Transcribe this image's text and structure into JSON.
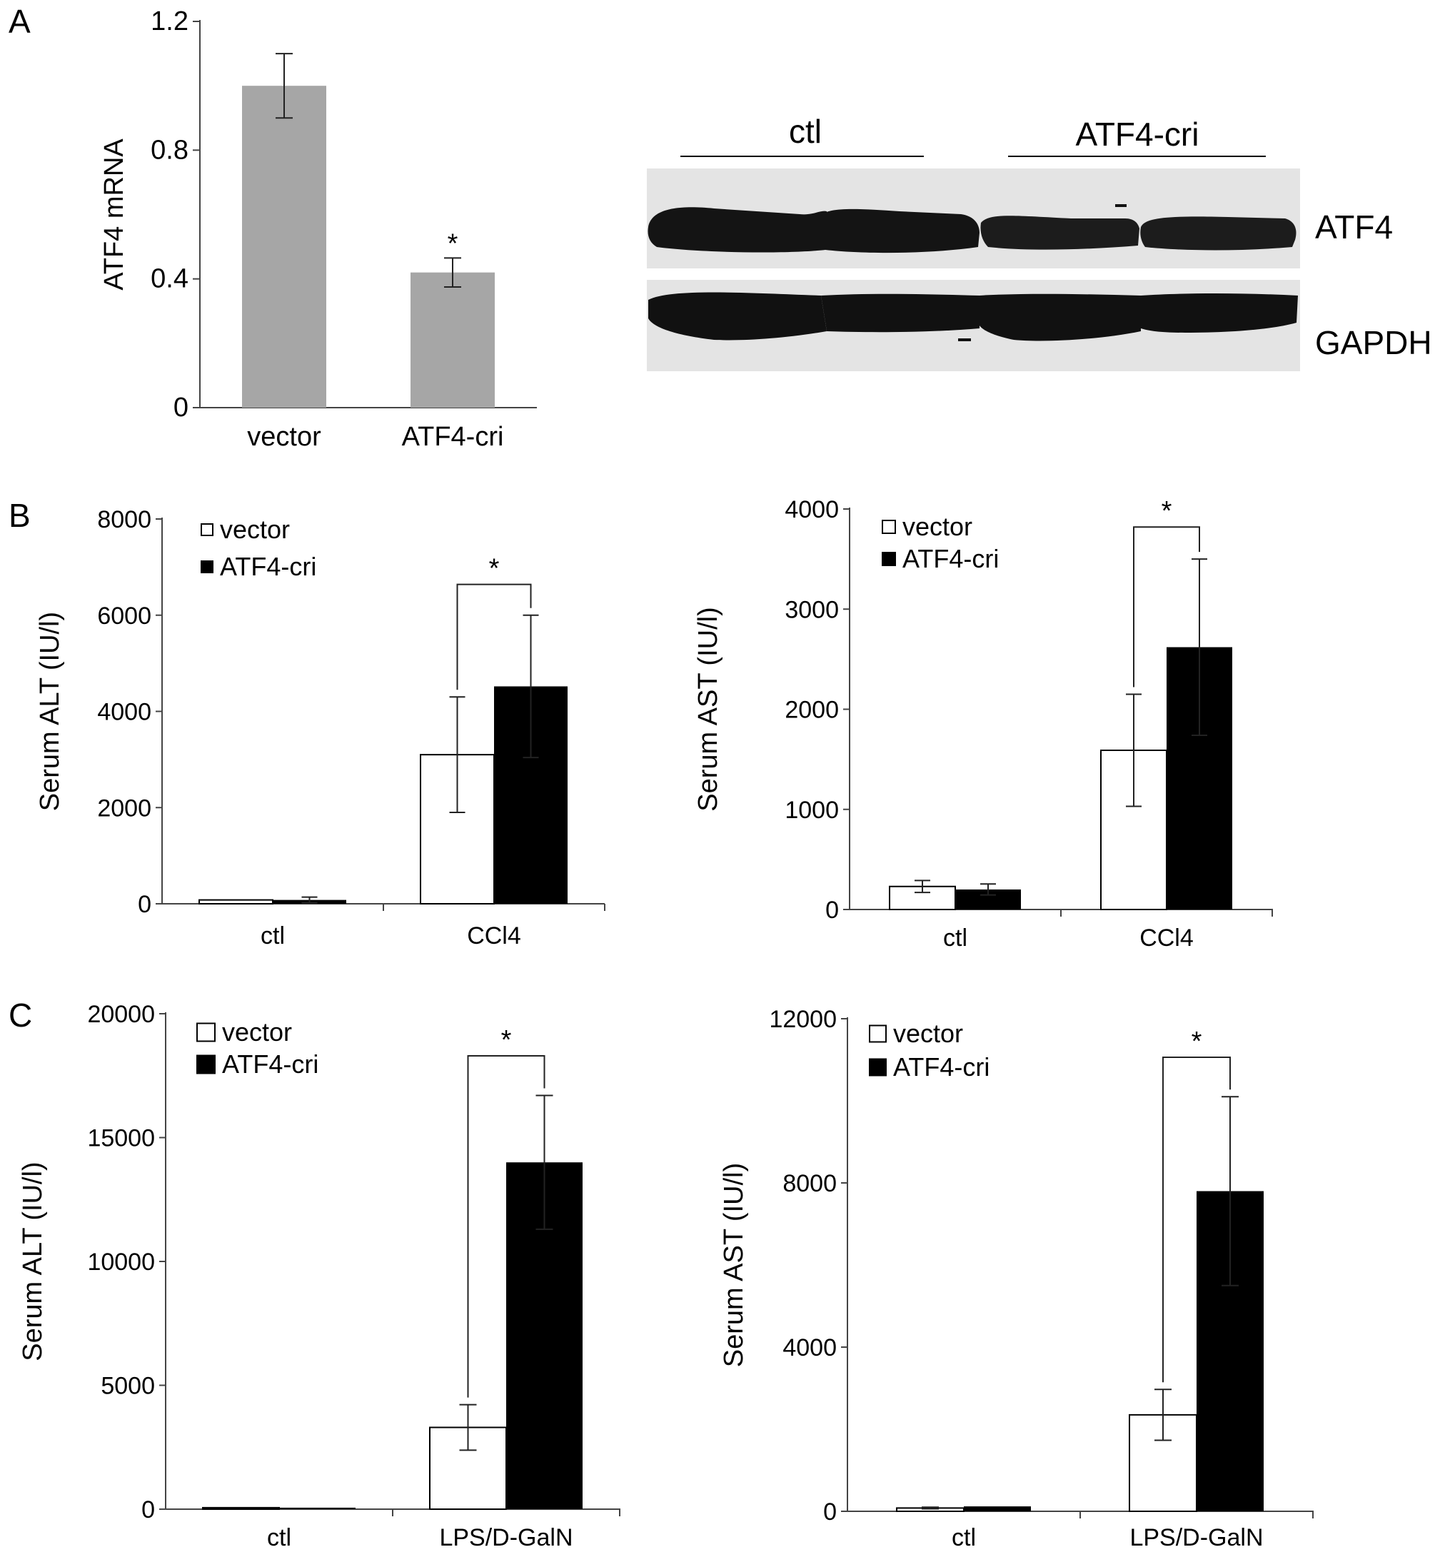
{
  "panel_letters": [
    "A",
    "B",
    "C"
  ],
  "western_blot": {
    "group_labels": [
      "ctl",
      "ATF4-cri"
    ],
    "band_labels": [
      "ATF4",
      "GAPDH"
    ]
  },
  "chart_data": [
    {
      "id": "a",
      "type": "bar",
      "panel": "A",
      "categories": [
        "vector",
        "ATF4-cri"
      ],
      "series": [
        {
          "values": [
            1.0,
            0.42
          ],
          "errors": [
            0.1,
            0.045
          ],
          "color": "#a6a6a6"
        }
      ],
      "ylabel": "ATF4 mRNA",
      "ylim": [
        0,
        1.2
      ],
      "yticks": [
        0,
        0.4,
        0.8,
        1.2
      ],
      "ytick_labels": [
        "0",
        "0.4",
        "0.8",
        "1.2"
      ],
      "annotations": [
        {
          "text": "*",
          "category": "ATF4-cri"
        }
      ],
      "grid": false
    },
    {
      "id": "b1",
      "type": "bar",
      "panel": "B",
      "categories": [
        "ctl",
        "CCl4"
      ],
      "series": [
        {
          "name": "vector",
          "values": [
            80,
            3100
          ],
          "errors": [
            0,
            1200
          ],
          "color": "#ffffff"
        },
        {
          "name": "ATF4-cri",
          "values": [
            80,
            4520
          ],
          "errors": [
            60,
            1480
          ],
          "color": "#000000"
        }
      ],
      "ylabel": "Serum ALT (IU/l)",
      "ylim": [
        0,
        8000
      ],
      "yticks": [
        0,
        2000,
        4000,
        6000,
        8000
      ],
      "legend": {
        "position": "top-left",
        "entries": [
          "vector",
          "ATF4-cri"
        ]
      },
      "annotations": [
        {
          "text": "*",
          "category": "CCl4",
          "type": "significance-bracket"
        }
      ],
      "grid": false
    },
    {
      "id": "b2",
      "type": "bar",
      "panel": "B",
      "categories": [
        "ctl",
        "CCl4"
      ],
      "series": [
        {
          "name": "vector",
          "values": [
            230,
            1590
          ],
          "errors": [
            60,
            560
          ],
          "color": "#ffffff"
        },
        {
          "name": "ATF4-cri",
          "values": [
            200,
            2620
          ],
          "errors": [
            55,
            880
          ],
          "color": "#000000"
        }
      ],
      "ylabel": "Serum AST (IU/l)",
      "ylim": [
        0,
        4000
      ],
      "yticks": [
        0,
        1000,
        2000,
        3000,
        4000
      ],
      "legend": {
        "position": "top-left",
        "entries": [
          "vector",
          "ATF4-cri"
        ]
      },
      "annotations": [
        {
          "text": "*",
          "category": "CCl4",
          "type": "significance-bracket"
        }
      ],
      "grid": false
    },
    {
      "id": "c1",
      "type": "bar",
      "panel": "C",
      "categories": [
        "ctl",
        "LPS/D-GalN"
      ],
      "series": [
        {
          "name": "vector",
          "values": [
            60,
            3300
          ],
          "errors": [
            0,
            920
          ],
          "color": "#ffffff"
        },
        {
          "name": "ATF4-cri",
          "values": [
            60,
            14000
          ],
          "errors": [
            0,
            2700
          ],
          "color": "#000000"
        }
      ],
      "ylabel": "Serum ALT (IU/l)",
      "ylim": [
        0,
        20000
      ],
      "yticks": [
        0,
        5000,
        10000,
        15000,
        20000
      ],
      "legend": {
        "position": "top-left",
        "entries": [
          "vector",
          "ATF4-cri"
        ]
      },
      "annotations": [
        {
          "text": "*",
          "category": "LPS/D-GalN",
          "type": "significance-bracket"
        }
      ],
      "grid": false
    },
    {
      "id": "c2",
      "type": "bar",
      "panel": "C",
      "categories": [
        "ctl",
        "LPS/D-GalN"
      ],
      "series": [
        {
          "name": "vector",
          "values": [
            80,
            2350
          ],
          "errors": [
            20,
            620
          ],
          "color": "#ffffff"
        },
        {
          "name": "ATF4-cri",
          "values": [
            120,
            7800
          ],
          "errors": [
            0,
            2300
          ],
          "color": "#000000"
        }
      ],
      "ylabel": "Serum AST (IU/l)",
      "ylim": [
        0,
        12000
      ],
      "yticks": [
        0,
        4000,
        8000,
        12000
      ],
      "legend": {
        "position": "top-left",
        "entries": [
          "vector",
          "ATF4-cri"
        ]
      },
      "annotations": [
        {
          "text": "*",
          "category": "LPS/D-GalN",
          "type": "significance-bracket"
        }
      ],
      "grid": false
    }
  ]
}
